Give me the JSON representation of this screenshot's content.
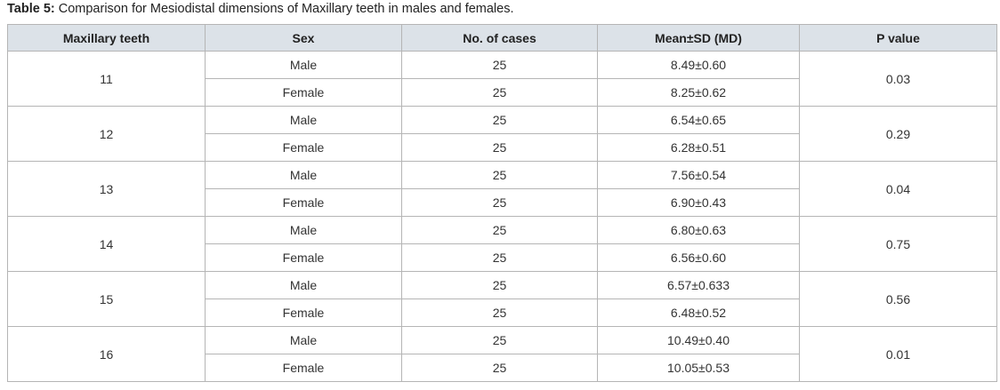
{
  "caption": {
    "label": "Table 5:",
    "text": "Comparison for Mesiodistal dimensions of Maxillary teeth in males and females."
  },
  "table": {
    "headers": [
      "Maxillary teeth",
      "Sex",
      "No. of cases",
      "Mean±SD (MD)",
      "P value"
    ],
    "groups": [
      {
        "tooth": "11",
        "p_value": "0.03",
        "rows": [
          [
            "Male",
            "25",
            "8.49±0.60"
          ],
          [
            "Female",
            "25",
            "8.25±0.62"
          ]
        ]
      },
      {
        "tooth": "12",
        "p_value": "0.29",
        "rows": [
          [
            "Male",
            "25",
            "6.54±0.65"
          ],
          [
            "Female",
            "25",
            "6.28±0.51"
          ]
        ]
      },
      {
        "tooth": "13",
        "p_value": "0.04",
        "rows": [
          [
            "Male",
            "25",
            "7.56±0.54"
          ],
          [
            "Female",
            "25",
            "6.90±0.43"
          ]
        ]
      },
      {
        "tooth": "14",
        "p_value": "0.75",
        "rows": [
          [
            "Male",
            "25",
            "6.80±0.63"
          ],
          [
            "Female",
            "25",
            "6.56±0.60"
          ]
        ]
      },
      {
        "tooth": "15",
        "p_value": "0.56",
        "rows": [
          [
            "Male",
            "25",
            "6.57±0.633"
          ],
          [
            "Female",
            "25",
            "6.48±0.52"
          ]
        ]
      },
      {
        "tooth": "16",
        "p_value": "0.01",
        "rows": [
          [
            "Male",
            "25",
            "10.49±0.40"
          ],
          [
            "Female",
            "25",
            "10.05±0.53"
          ]
        ]
      }
    ]
  }
}
